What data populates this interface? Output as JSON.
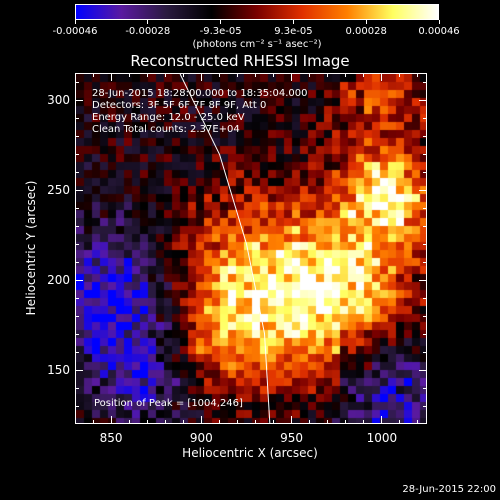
{
  "colorbar": {
    "tick_labels": [
      "-0.00046",
      "-0.00028",
      "-9.3e-05",
      "9.3e-05",
      "0.00028",
      "0.00046"
    ],
    "units": "(photons cm⁻² s⁻¹ asec⁻²)"
  },
  "plot": {
    "title": "Reconstructed RHESSI Image",
    "info_lines": [
      "28-Jun-2015 18:28:00.000 to 18:35:04.000",
      "Detectors: 3F 5F 6F 7F 8F 9F, Att 0",
      "Energy Range: 12.0 - 25.0 keV",
      "Clean     Total counts: 2.37E+04"
    ],
    "peak_label": "Position of Peak = [1004,246]"
  },
  "chart_data": {
    "type": "heatmap",
    "title": "Reconstructed RHESSI Image",
    "xlabel": "Heliocentric X (arcsec)",
    "ylabel": "Heliocentric Y (arcsec)",
    "xlim": [
      830,
      1025
    ],
    "ylim": [
      120,
      315
    ],
    "xticks": [
      "850",
      "900",
      "950",
      "1000"
    ],
    "yticks": [
      "150",
      "200",
      "250",
      "300"
    ],
    "xtick_values": [
      850,
      900,
      950,
      1000
    ],
    "ytick_values": [
      150,
      200,
      250,
      300
    ],
    "color_range": [
      -0.00046,
      0.00046
    ],
    "colormap": [
      "#0000ff",
      "#5a1aa0",
      "#2a1a40",
      "#000000",
      "#7a0000",
      "#e03000",
      "#ff8000",
      "#ffff60",
      "#ffffff"
    ],
    "peak_position": [
      1004,
      246
    ],
    "limb_points": [
      [
        888,
        315
      ],
      [
        910,
        270
      ],
      [
        925,
        220
      ],
      [
        935,
        170
      ],
      [
        938,
        120
      ]
    ],
    "bright_regions": [
      {
        "center": [
          1004,
          246
        ],
        "radius": 18,
        "level": 1.0
      },
      {
        "center": [
          950,
          205
        ],
        "radius": 35,
        "level": 0.55
      },
      {
        "center": [
          920,
          200
        ],
        "radius": 30,
        "level": 0.45
      },
      {
        "center": [
          965,
          175
        ],
        "radius": 28,
        "level": 0.45
      },
      {
        "center": [
          905,
          165
        ],
        "radius": 22,
        "level": 0.4
      },
      {
        "center": [
          1000,
          300
        ],
        "radius": 20,
        "level": 0.45
      },
      {
        "center": [
          990,
          200
        ],
        "radius": 22,
        "level": 0.45
      }
    ],
    "negative_regions": [
      {
        "center": [
          850,
          190
        ],
        "radius": 30,
        "level": -0.7
      },
      {
        "center": [
          1005,
          135
        ],
        "radius": 22,
        "level": -0.6
      },
      {
        "center": [
          870,
          145
        ],
        "radius": 18,
        "level": -0.5
      }
    ]
  },
  "footer": {
    "timestamp": "28-Jun-2015 22:00"
  }
}
